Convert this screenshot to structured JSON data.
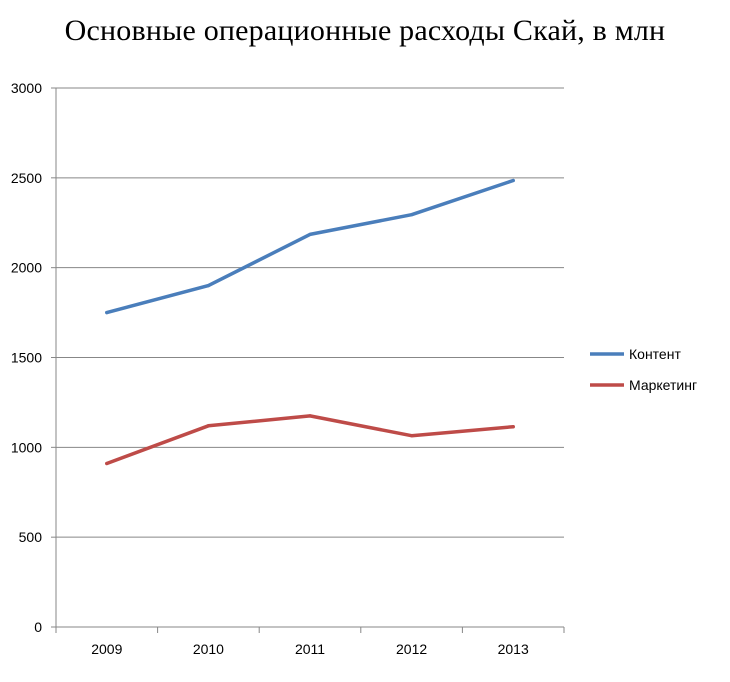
{
  "chart_data": {
    "type": "line",
    "title": "Основные операционные расходы Скай, в млн",
    "xlabel": "",
    "ylabel": "",
    "categories": [
      "2009",
      "2010",
      "2011",
      "2012",
      "2013"
    ],
    "ylim": [
      0,
      3000
    ],
    "yticks": [
      0,
      500,
      1000,
      1500,
      2000,
      2500,
      3000
    ],
    "grid": true,
    "legend_position": "right",
    "series": [
      {
        "name": "Контент",
        "color": "#4a7ebb",
        "values": [
          1750,
          1900,
          2185,
          2295,
          2485
        ]
      },
      {
        "name": "Маркетинг",
        "color": "#be4b48",
        "values": [
          910,
          1120,
          1175,
          1065,
          1115
        ]
      }
    ]
  }
}
